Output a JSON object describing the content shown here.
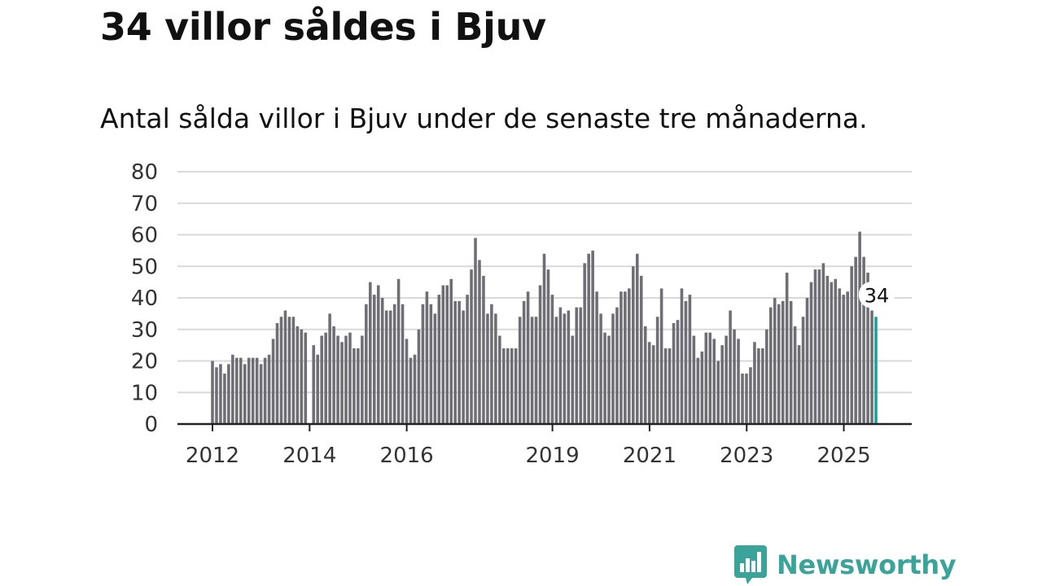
{
  "title": "34 villor såldes i Bjuv",
  "subtitle": "Antal sålda villor i Bjuv under de senaste tre månaderna.",
  "brand": {
    "name": "Newsworthy",
    "logo_icon": "bar-chart-chat-icon",
    "color": "#3aa39a"
  },
  "colors": {
    "bar": "#6f6e75",
    "highlight": "#17a39b",
    "grid": "#d9d9d9",
    "axis": "#222222"
  },
  "chart_data": {
    "type": "bar",
    "ylim": [
      0,
      80
    ],
    "yticks": [
      0,
      10,
      20,
      30,
      40,
      50,
      60,
      70,
      80
    ],
    "x_start": 2012.0,
    "x_step": 0.0833,
    "xticks": [
      {
        "value": 2012,
        "label": "2012"
      },
      {
        "value": 2014,
        "label": "2014"
      },
      {
        "value": 2016,
        "label": "2016"
      },
      {
        "value": 2019,
        "label": "2019"
      },
      {
        "value": 2021,
        "label": "2021"
      },
      {
        "value": 2023,
        "label": "2023"
      },
      {
        "value": 2025,
        "label": "2025"
      }
    ],
    "values": [
      20,
      18,
      19,
      16,
      19,
      22,
      21,
      21,
      19,
      21,
      21,
      21,
      19,
      21,
      22,
      27,
      32,
      34,
      36,
      34,
      34,
      31,
      30,
      29,
      0,
      25,
      22,
      28,
      29,
      35,
      31,
      28,
      26,
      28,
      29,
      24,
      24,
      28,
      38,
      45,
      41,
      44,
      40,
      36,
      36,
      38,
      46,
      38,
      27,
      21,
      22,
      30,
      38,
      42,
      38,
      35,
      41,
      44,
      44,
      46,
      39,
      39,
      36,
      41,
      49,
      59,
      52,
      47,
      35,
      38,
      35,
      28,
      24,
      24,
      24,
      24,
      34,
      39,
      42,
      34,
      34,
      44,
      54,
      49,
      41,
      34,
      37,
      35,
      36,
      28,
      37,
      37,
      51,
      54,
      55,
      42,
      35,
      29,
      28,
      35,
      37,
      42,
      42,
      43,
      50,
      54,
      47,
      31,
      26,
      25,
      34,
      43,
      24,
      24,
      32,
      33,
      43,
      39,
      41,
      28,
      21,
      23,
      29,
      29,
      27,
      20,
      25,
      28,
      36,
      30,
      27,
      16,
      16,
      18,
      26,
      24,
      24,
      30,
      37,
      40,
      38,
      39,
      48,
      39,
      31,
      25,
      34,
      40,
      45,
      49,
      49,
      51,
      47,
      45,
      46,
      43,
      41,
      42,
      50,
      53,
      61,
      53,
      48,
      36,
      34
    ],
    "last_value_label": "34"
  }
}
